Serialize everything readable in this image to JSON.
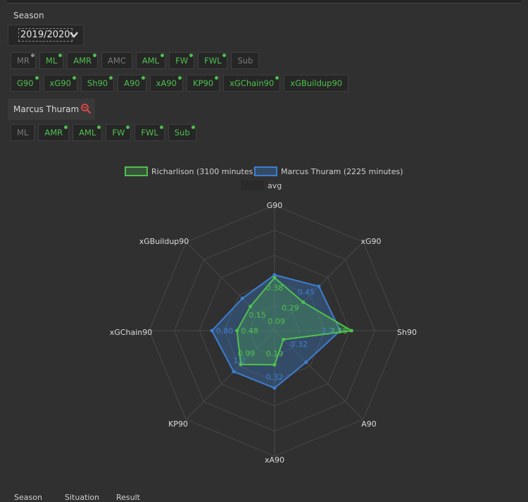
{
  "season_label": "Season",
  "season_value": "2019/2020",
  "position_chips": [
    {
      "label": "MR",
      "active": false,
      "dot": "grey"
    },
    {
      "label": "ML",
      "active": true,
      "dot": "green"
    },
    {
      "label": "AMR",
      "active": true,
      "dot": "green"
    },
    {
      "label": "AMC",
      "active": false,
      "dot": "none"
    },
    {
      "label": "AML",
      "active": true,
      "dot": "green"
    },
    {
      "label": "FW",
      "active": true,
      "dot": "green"
    },
    {
      "label": "FWL",
      "active": true,
      "dot": "green"
    },
    {
      "label": "Sub",
      "active": false,
      "dot": "none"
    }
  ],
  "metric_chips": [
    {
      "label": "G90",
      "active": true,
      "dot": "green"
    },
    {
      "label": "xG90",
      "active": true,
      "dot": "green"
    },
    {
      "label": "Sh90",
      "active": true,
      "dot": "green"
    },
    {
      "label": "A90",
      "active": true,
      "dot": "green"
    },
    {
      "label": "xA90",
      "active": true,
      "dot": "green"
    },
    {
      "label": "KP90",
      "active": true,
      "dot": "green"
    },
    {
      "label": "xGChain90",
      "active": true,
      "dot": "green"
    },
    {
      "label": "xGBuildup90",
      "active": true,
      "dot": "none"
    }
  ],
  "compare_player": "Marcus Thuram",
  "compare_chips": [
    {
      "label": "ML",
      "active": false,
      "dot": "none"
    },
    {
      "label": "AMR",
      "active": true,
      "dot": "green"
    },
    {
      "label": "AML",
      "active": true,
      "dot": "green"
    },
    {
      "label": "FW",
      "active": true,
      "dot": "green"
    },
    {
      "label": "FWL",
      "active": true,
      "dot": "green"
    },
    {
      "label": "Sub",
      "active": true,
      "dot": "green"
    }
  ],
  "colors": {
    "green": "#4fc04f",
    "blue": "#3d7ecf",
    "grid": "#484848"
  },
  "chart_data": {
    "type": "radar",
    "axes": [
      "G90",
      "xG90",
      "Sh90",
      "A90",
      "xA90",
      "KP90",
      "xGChain90",
      "xGBuildup90"
    ],
    "series": [
      {
        "name": "Richarlison (3100 minutes)",
        "values": [
          0.38,
          0.29,
          2.58,
          0.09,
          0.19,
          0.99,
          0.48,
          0.15
        ],
        "labels": [
          "0.38",
          "0.29",
          "2.58",
          "0.09",
          "0.19",
          "0.99",
          "0.48",
          "0.15"
        ],
        "color": "#4fc04f",
        "fill": "rgba(79,192,79,0.25)"
      },
      {
        "name": "Marcus Thuram (2225 minutes)",
        "values": [
          0.4,
          0.45,
          2.2,
          0.32,
          0.32,
          1.2,
          0.8,
          0.2
        ],
        "labels": [
          "",
          "0.45",
          "2.2",
          "0.32",
          "0.32",
          "1.2",
          "0.80",
          ""
        ],
        "color": "#3d7ecf",
        "fill": "rgba(61,126,207,0.35)"
      }
    ],
    "legend": [
      "Richarlison (3100 minutes)",
      "Marcus Thuram (2225 minutes)",
      "avg"
    ],
    "legend_placement": "top",
    "grid": true
  },
  "bottom_headers": [
    "Season",
    "Situation",
    "Result"
  ]
}
